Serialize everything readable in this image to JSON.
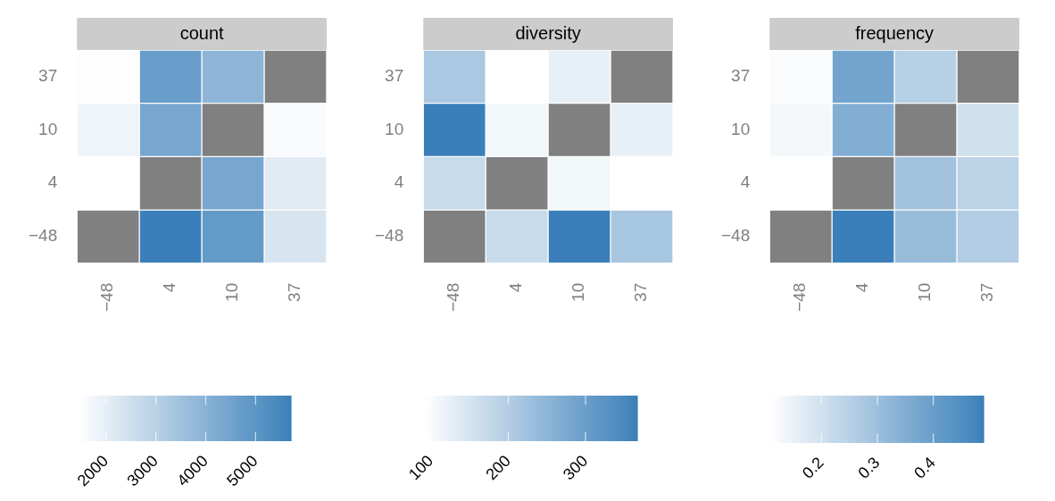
{
  "chart_data": [
    {
      "type": "heatmap",
      "title": "count",
      "categories": [
        "−48",
        "4",
        "10",
        "37"
      ],
      "y_categories": [
        "37",
        "10",
        "4",
        "−48"
      ],
      "cells": [
        [
          1500,
          4700,
          3900,
          null
        ],
        [
          1800,
          4400,
          null,
          1600
        ],
        [
          1450,
          null,
          4400,
          2100
        ],
        [
          null,
          5700,
          4800,
          2300
        ]
      ],
      "clim": [
        1450,
        5710
      ],
      "cticks": [
        2000,
        3000,
        4000,
        5000
      ]
    },
    {
      "type": "heatmap",
      "title": "diversity",
      "categories": [
        "−48",
        "4",
        "10",
        "37"
      ],
      "y_categories": [
        "37",
        "10",
        "4",
        "−48"
      ],
      "cells": [
        [
          210,
          92,
          125,
          null
        ],
        [
          367,
          110,
          null,
          125
        ],
        [
          170,
          null,
          110,
          92
        ],
        [
          null,
          170,
          367,
          215
        ]
      ],
      "clim": [
        92,
        367
      ],
      "cticks": [
        100,
        200,
        300
      ]
    },
    {
      "type": "heatmap",
      "title": "frequency",
      "categories": [
        "−48",
        "4",
        "10",
        "37"
      ],
      "y_categories": [
        "37",
        "10",
        "4",
        "−48"
      ],
      "cells": [
        [
          0.12,
          0.38,
          0.25,
          null
        ],
        [
          0.13,
          0.35,
          null,
          0.2
        ],
        [
          0.11,
          null,
          0.29,
          0.24
        ],
        [
          null,
          0.49,
          0.31,
          0.26
        ]
      ],
      "clim": [
        0.11,
        0.49
      ],
      "cticks": [
        0.2,
        0.3,
        0.4
      ]
    }
  ]
}
